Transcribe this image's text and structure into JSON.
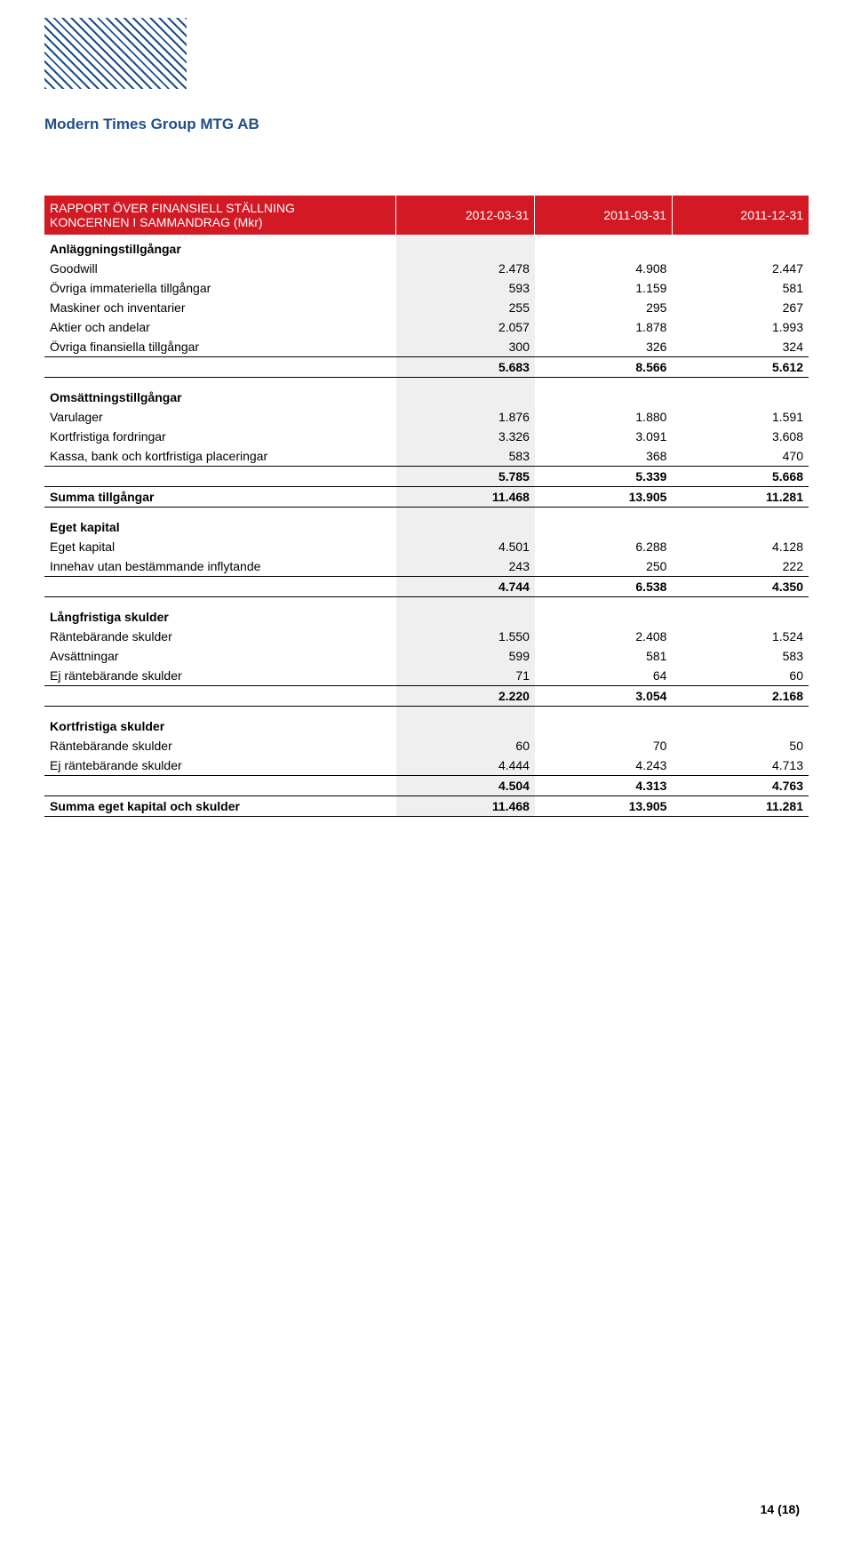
{
  "company": "Modern Times Group MTG AB",
  "header": {
    "title_line1": "RAPPORT ÖVER FINANSIELL STÄLLNING",
    "title_line2": "KONCERNEN I SAMMANDRAG (Mkr)",
    "cols": [
      "2012-03-31",
      "2011-03-31",
      "2011-12-31"
    ]
  },
  "sections": [
    {
      "title": "Anläggningstillgångar",
      "rows": [
        {
          "label": "Goodwill",
          "v": [
            "2.478",
            "4.908",
            "2.447"
          ]
        },
        {
          "label": "Övriga immateriella tillgångar",
          "v": [
            "593",
            "1.159",
            "581"
          ]
        },
        {
          "label": "Maskiner och inventarier",
          "v": [
            "255",
            "295",
            "267"
          ]
        },
        {
          "label": "Aktier och andelar",
          "v": [
            "2.057",
            "1.878",
            "1.993"
          ]
        },
        {
          "label": "Övriga finansiella tillgångar",
          "v": [
            "300",
            "326",
            "324"
          ]
        }
      ],
      "subtotal": [
        "5.683",
        "8.566",
        "5.612"
      ]
    },
    {
      "title": "Omsättningstillgångar",
      "rows": [
        {
          "label": "Varulager",
          "v": [
            "1.876",
            "1.880",
            "1.591"
          ]
        },
        {
          "label": "Kortfristiga fordringar",
          "v": [
            "3.326",
            "3.091",
            "3.608"
          ]
        },
        {
          "label": "Kassa, bank och kortfristiga placeringar",
          "v": [
            "583",
            "368",
            "470"
          ]
        }
      ],
      "subtotal": [
        "5.785",
        "5.339",
        "5.668"
      ],
      "grand": {
        "label": "Summa tillgångar",
        "v": [
          "11.468",
          "13.905",
          "11.281"
        ]
      }
    },
    {
      "title": "Eget kapital",
      "rows": [
        {
          "label": "Eget kapital",
          "v": [
            "4.501",
            "6.288",
            "4.128"
          ]
        },
        {
          "label": "Innehav utan bestämmande inflytande",
          "v": [
            "243",
            "250",
            "222"
          ]
        }
      ],
      "subtotal": [
        "4.744",
        "6.538",
        "4.350"
      ]
    },
    {
      "title": "Långfristiga skulder",
      "rows": [
        {
          "label": "Räntebärande skulder",
          "v": [
            "1.550",
            "2.408",
            "1.524"
          ]
        },
        {
          "label": "Avsättningar",
          "v": [
            "599",
            "581",
            "583"
          ]
        },
        {
          "label": "Ej räntebärande skulder",
          "v": [
            "71",
            "64",
            "60"
          ]
        }
      ],
      "subtotal": [
        "2.220",
        "3.054",
        "2.168"
      ]
    },
    {
      "title": "Kortfristiga skulder",
      "rows": [
        {
          "label": "Räntebärande skulder",
          "v": [
            "60",
            "70",
            "50"
          ]
        },
        {
          "label": "Ej räntebärande skulder",
          "v": [
            "4.444",
            "4.243",
            "4.713"
          ]
        }
      ],
      "subtotal": [
        "4.504",
        "4.313",
        "4.763"
      ],
      "grand": {
        "label": "Summa eget kapital och skulder",
        "v": [
          "11.468",
          "13.905",
          "11.281"
        ]
      }
    }
  ],
  "footer": "14 (18)",
  "colors": {
    "header_bg": "#d21924",
    "header_fg": "#ffffff",
    "brand": "#1f4e8c",
    "highlight": "#efefef"
  }
}
